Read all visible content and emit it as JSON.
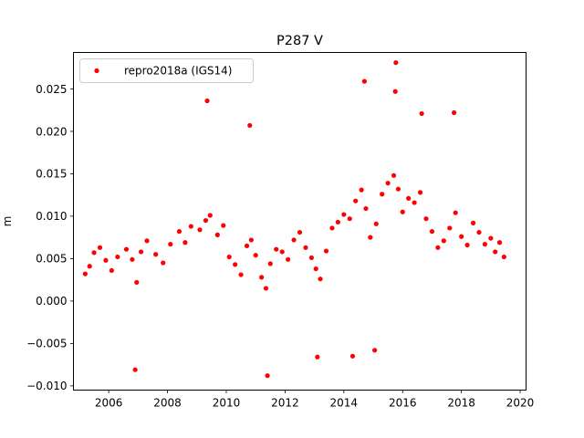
{
  "chart_data": {
    "type": "scatter",
    "title": "P287 V",
    "xlabel": "",
    "ylabel": "m",
    "xlim": [
      2004.8,
      2020.2
    ],
    "ylim": [
      -0.0105,
      0.0293
    ],
    "xticks": [
      2006,
      2008,
      2010,
      2012,
      2014,
      2016,
      2018,
      2020
    ],
    "xtick_labels": [
      "2006",
      "2008",
      "2010",
      "2012",
      "2014",
      "2016",
      "2018",
      "2020"
    ],
    "yticks": [
      -0.01,
      -0.005,
      0.0,
      0.005,
      0.01,
      0.015,
      0.02,
      0.025
    ],
    "ytick_labels": [
      "−0.010",
      "−0.005",
      "0.000",
      "0.005",
      "0.010",
      "0.015",
      "0.020",
      "0.025"
    ],
    "grid": false,
    "legend_position": "top-left",
    "marker_color": "#ff0000",
    "series": [
      {
        "name": "repro2018a (IGS14)",
        "color": "#ff0000",
        "x": [
          2005.2,
          2005.35,
          2005.5,
          2005.7,
          2005.9,
          2006.1,
          2006.3,
          2006.6,
          2006.8,
          2006.95,
          2007.1,
          2007.3,
          2007.6,
          2007.85,
          2008.1,
          2008.4,
          2008.6,
          2008.8,
          2009.1,
          2009.3,
          2009.45,
          2009.7,
          2009.9,
          2010.1,
          2010.3,
          2010.5,
          2010.7,
          2010.85,
          2011.0,
          2011.2,
          2011.35,
          2011.5,
          2011.7,
          2011.9,
          2012.1,
          2012.3,
          2012.5,
          2012.7,
          2012.9,
          2013.05,
          2013.2,
          2013.4,
          2013.6,
          2013.8,
          2014.0,
          2014.2,
          2014.4,
          2014.6,
          2014.75,
          2014.9,
          2015.1,
          2015.3,
          2015.5,
          2015.7,
          2015.85,
          2016.0,
          2016.2,
          2016.4,
          2016.6,
          2016.8,
          2017.0,
          2017.2,
          2017.4,
          2017.6,
          2017.8,
          2018.0,
          2018.2,
          2018.4,
          2018.6,
          2018.8,
          2019.0,
          2019.15,
          2019.3,
          2019.45,
          2009.35,
          2010.8,
          2011.4,
          2015.77,
          2015.75,
          2014.7,
          2016.65,
          2017.75,
          2006.9,
          2013.1,
          2015.05,
          2014.3
        ],
        "y": [
          0.0032,
          0.0041,
          0.0057,
          0.0063,
          0.0048,
          0.0036,
          0.0052,
          0.0061,
          0.0049,
          0.0022,
          0.0058,
          0.0071,
          0.0055,
          0.0045,
          0.0067,
          0.0082,
          0.0069,
          0.0088,
          0.0084,
          0.0095,
          0.0101,
          0.0078,
          0.0089,
          0.0052,
          0.0043,
          0.0031,
          0.0065,
          0.0072,
          0.0054,
          0.0028,
          0.0015,
          0.0044,
          0.0061,
          0.0058,
          0.0049,
          0.0072,
          0.0081,
          0.0063,
          0.0051,
          0.0038,
          0.0026,
          0.0059,
          0.0086,
          0.0093,
          0.0102,
          0.0097,
          0.0118,
          0.0131,
          0.0109,
          0.0075,
          0.0091,
          0.0126,
          0.0139,
          0.0148,
          0.0132,
          0.0105,
          0.0121,
          0.0116,
          0.0128,
          0.0097,
          0.0082,
          0.0063,
          0.0071,
          0.0086,
          0.0104,
          0.0076,
          0.0066,
          0.0092,
          0.0081,
          0.0067,
          0.0074,
          0.0058,
          0.0069,
          0.0052,
          0.0236,
          0.0207,
          -0.0088,
          0.0281,
          0.0247,
          0.0259,
          0.0221,
          0.0222,
          -0.0081,
          -0.0066,
          -0.0058,
          -0.0065
        ]
      }
    ]
  }
}
